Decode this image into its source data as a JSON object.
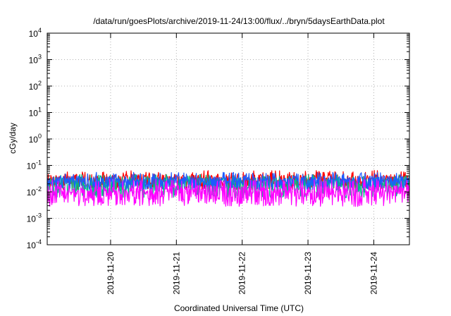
{
  "chart_data": {
    "type": "line",
    "title": "/data/run/goesPlots/archive/2019-11-24/13:00/flux/../bryn/5daysEarthData.plot",
    "xlabel": "Coordinated Universal Time (UTC)",
    "ylabel": "cGy/day",
    "yscale": "log",
    "ylim": [
      0.0001,
      10000
    ],
    "xlim": [
      "2019-11-19T00:53",
      "2019-11-24T13:00"
    ],
    "grid": true,
    "x_ticks": [
      "2019-11-20",
      "2019-11-21",
      "2019-11-22",
      "2019-11-23",
      "2019-11-24"
    ],
    "y_ticks": [
      {
        "base": "10",
        "exp": "-4"
      },
      {
        "base": "10",
        "exp": "-3"
      },
      {
        "base": "10",
        "exp": "-2"
      },
      {
        "base": "10",
        "exp": "-1"
      },
      {
        "base": "10",
        "exp": "0"
      },
      {
        "base": "10",
        "exp": "1"
      },
      {
        "base": "10",
        "exp": "2"
      },
      {
        "base": "10",
        "exp": "3"
      },
      {
        "base": "10",
        "exp": "4"
      }
    ],
    "data_gaps": [
      [
        "2019-11-19T14:40",
        "2019-11-19T15:20"
      ],
      [
        "2019-11-22T20:30",
        "2019-11-22T21:00"
      ]
    ],
    "series": [
      {
        "color": "#ff0000",
        "base": 0.03,
        "low": 0.012,
        "high": 0.065
      },
      {
        "color": "#00bb88",
        "base": 0.022,
        "low": 0.006,
        "high": 0.045
      },
      {
        "color": "#1e5aff",
        "base": 0.025,
        "low": 0.012,
        "high": 0.055
      },
      {
        "color": "#ff00ff",
        "base": 0.009,
        "low": 0.0028,
        "high": 0.03
      }
    ]
  }
}
